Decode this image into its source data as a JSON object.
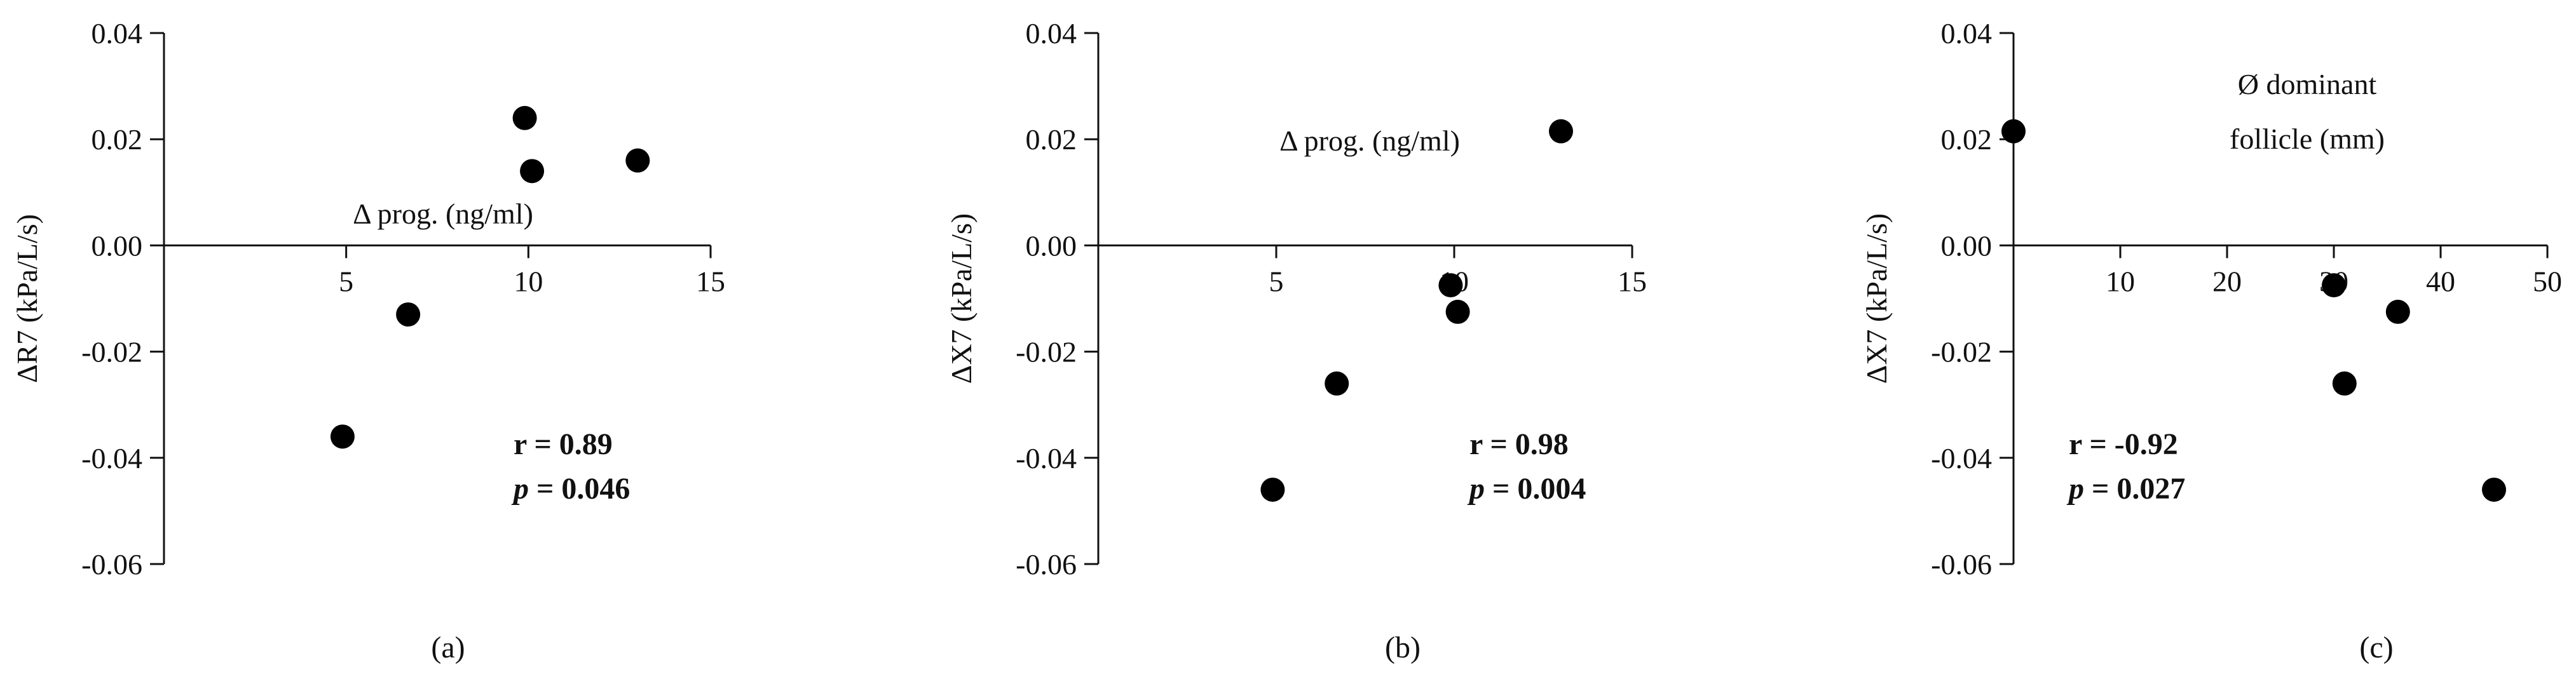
{
  "chart_data": [
    {
      "type": "scatter",
      "panel_label": "(a)",
      "xlabel": "Δ prog. (ng/ml)",
      "ylabel": "ΔR7 (kPa/L/s)",
      "xlim": [
        0,
        15
      ],
      "ylim": [
        -0.06,
        0.04
      ],
      "xticks": [
        5,
        10,
        15
      ],
      "xtick_labels": [
        "5",
        "10",
        "15"
      ],
      "yticks": [
        0.04,
        0.02,
        0.0,
        -0.02,
        -0.04,
        -0.06
      ],
      "ytick_labels": [
        "0.04",
        "0.02",
        "0.00",
        "-0.02",
        "-0.04",
        "-0.06"
      ],
      "points": [
        {
          "x": 4.9,
          "y": -0.036
        },
        {
          "x": 6.7,
          "y": -0.013
        },
        {
          "x": 9.9,
          "y": 0.024
        },
        {
          "x": 10.1,
          "y": 0.014
        },
        {
          "x": 13.0,
          "y": 0.016
        }
      ],
      "stats": {
        "r_text": "r = 0.89",
        "p_symbol": "p",
        "p_value": " = 0.046"
      }
    },
    {
      "type": "scatter",
      "panel_label": "(b)",
      "xlabel": "Δ prog. (ng/ml)",
      "ylabel": "ΔX7 (kPa/L/s)",
      "xlim": [
        0,
        15
      ],
      "ylim": [
        -0.06,
        0.04
      ],
      "xticks": [
        5,
        10,
        15
      ],
      "xtick_labels": [
        "5",
        "10",
        "15"
      ],
      "yticks": [
        0.04,
        0.02,
        0.0,
        -0.02,
        -0.04,
        -0.06
      ],
      "ytick_labels": [
        "0.04",
        "0.02",
        "0.00",
        "-0.02",
        "-0.04",
        "-0.06"
      ],
      "points": [
        {
          "x": 4.9,
          "y": -0.046
        },
        {
          "x": 6.7,
          "y": -0.026
        },
        {
          "x": 9.9,
          "y": -0.0075
        },
        {
          "x": 10.1,
          "y": -0.0125
        },
        {
          "x": 13.0,
          "y": 0.0215
        }
      ],
      "stats": {
        "r_text": "r = 0.98",
        "p_symbol": "p",
        "p_value": " = 0.004"
      }
    },
    {
      "type": "scatter",
      "panel_label": "(c)",
      "xlabel": [
        "Ø dominant",
        "follicle (mm)"
      ],
      "ylabel": "ΔX7 (kPa/L/s)",
      "xlim": [
        0,
        50
      ],
      "ylim": [
        -0.06,
        0.04
      ],
      "xticks": [
        10,
        20,
        30,
        40,
        50
      ],
      "xtick_labels": [
        "10",
        "20",
        "30",
        "40",
        "50"
      ],
      "yticks": [
        0.04,
        0.02,
        0.0,
        -0.02,
        -0.04,
        -0.06
      ],
      "ytick_labels": [
        "0.04",
        "0.02",
        "0.00",
        "-0.02",
        "-0.04",
        "-0.06"
      ],
      "points": [
        {
          "x": 0,
          "y": 0.0215
        },
        {
          "x": 30,
          "y": -0.0075
        },
        {
          "x": 31,
          "y": -0.026
        },
        {
          "x": 36,
          "y": -0.0125
        },
        {
          "x": 45,
          "y": -0.046
        }
      ],
      "stats": {
        "r_text": "r = -0.92",
        "p_symbol": "p",
        "p_value": " = 0.027"
      }
    }
  ]
}
